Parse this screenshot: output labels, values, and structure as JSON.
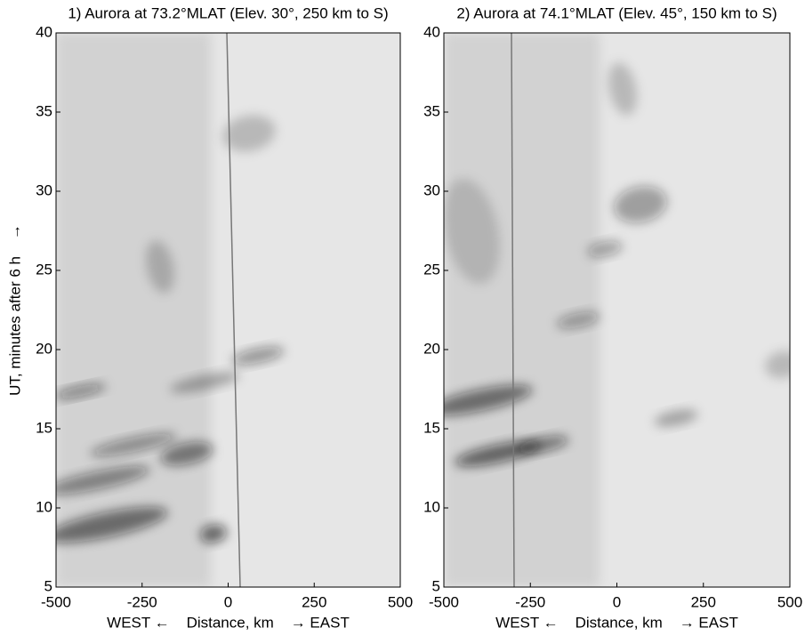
{
  "chart_data": [
    {
      "type": "image",
      "title": "1) Aurora at 73.2°MLAT (Elev. 30°, 250 km to S)",
      "xlabel": "WEST ←    Distance, km    → EAST",
      "ylabel": "UT, minutes after 6 h    →",
      "xlim": [
        -500,
        500
      ],
      "xticks": [
        -500,
        -250,
        0,
        250,
        500
      ],
      "ylim": [
        5,
        40
      ],
      "yticks": [
        5,
        10,
        15,
        20,
        25,
        30,
        35,
        40
      ]
    },
    {
      "type": "image",
      "title": "2) Aurora at 74.1°MLAT (Elev. 45°, 150 km to S)",
      "xlabel": "WEST ←    Distance, km    → EAST",
      "xlim": [
        -500,
        500
      ],
      "xticks": [
        -500,
        -250,
        0,
        250,
        500
      ],
      "ylim": [
        5,
        40
      ],
      "yticks": [
        5,
        10,
        15,
        20,
        25,
        30,
        35,
        40
      ]
    }
  ]
}
